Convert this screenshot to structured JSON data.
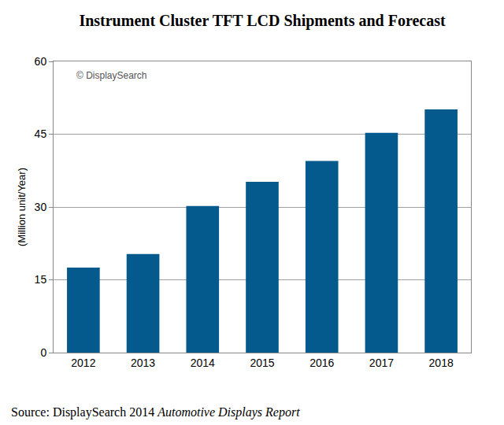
{
  "chart_data": {
    "type": "bar",
    "title": "Instrument Cluster TFT LCD Shipments and Forecast",
    "y_label": "(Million unit/Year)",
    "categories": [
      "2012",
      "2013",
      "2014",
      "2015",
      "2016",
      "2017",
      "2018"
    ],
    "values": [
      17.5,
      20.3,
      30.2,
      35.2,
      39.5,
      45.3,
      50.1
    ],
    "color": "#045a8d",
    "ylim": [
      0,
      60
    ],
    "yticks": [
      0,
      15,
      30,
      45,
      60
    ],
    "grid": true,
    "annotations": [
      "© DisplaySearch"
    ],
    "source": [
      "Source: DisplaySearch 2014",
      "Automotive Displays Report"
    ]
  }
}
